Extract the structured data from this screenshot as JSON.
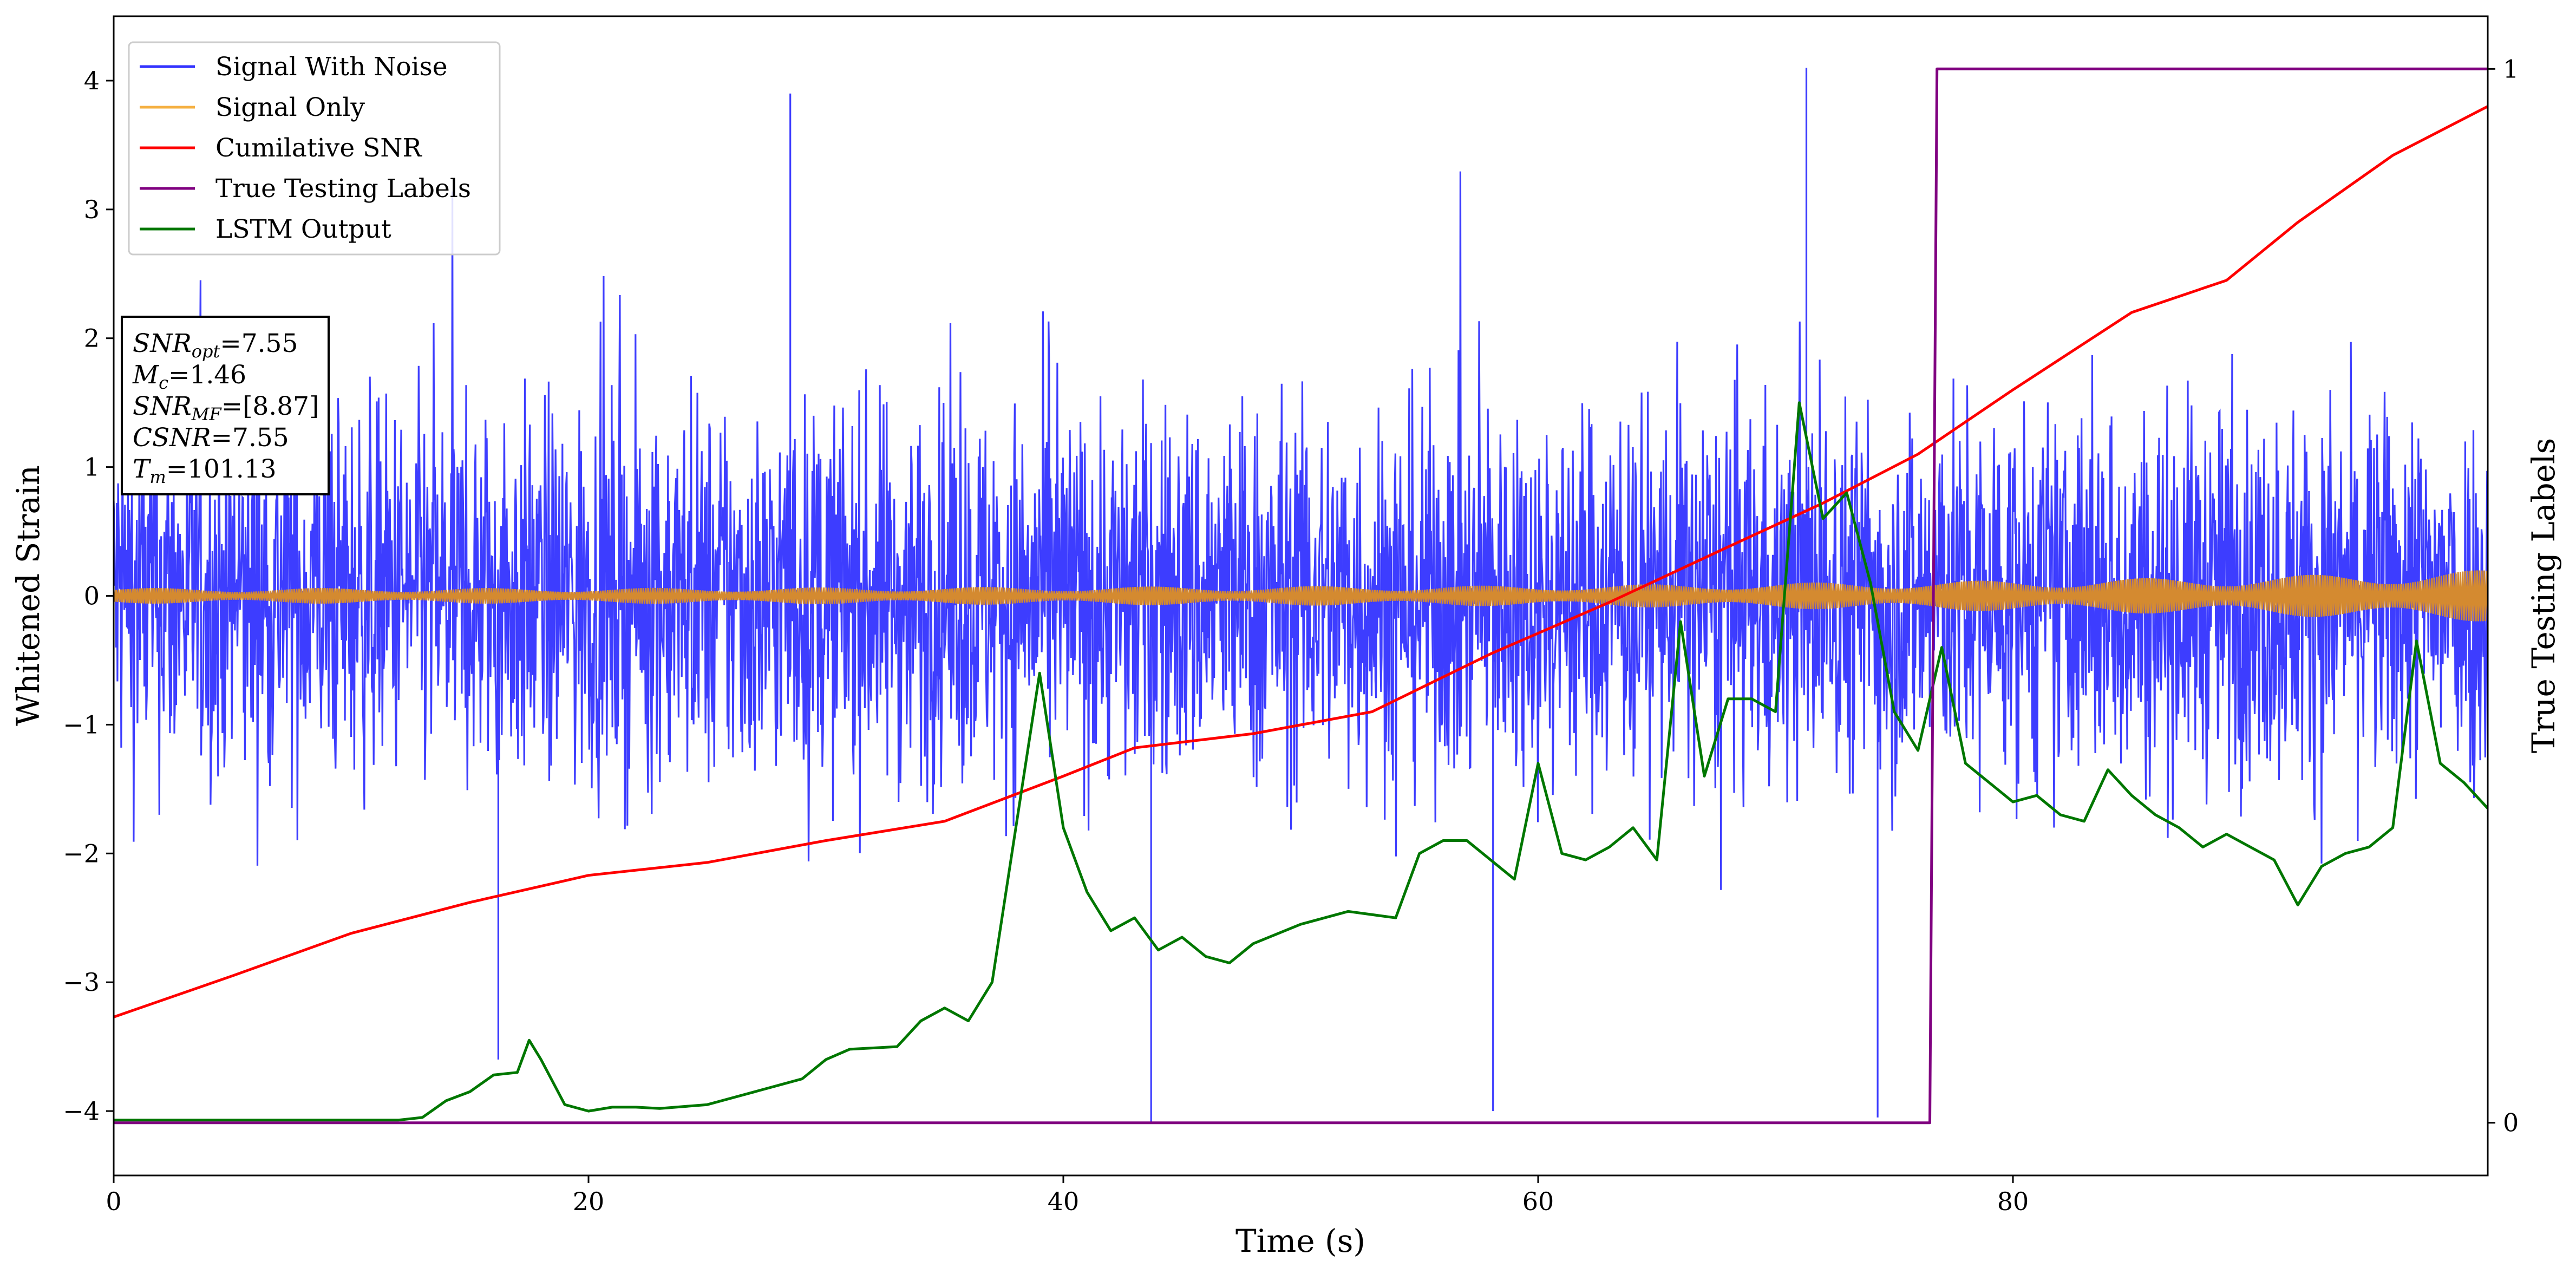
{
  "chart_data": {
    "type": "line",
    "xlabel": "Time (s)",
    "ylabel": "Whitened Strain",
    "y2label": "True Testing Labels",
    "xlim": [
      0,
      100
    ],
    "ylim": [
      -4.5,
      4.5
    ],
    "y2lim": [
      -0.05,
      1.05
    ],
    "xticks": [
      "0",
      "20",
      "40",
      "60",
      "80"
    ],
    "xtick_values": [
      0,
      20,
      40,
      60,
      80
    ],
    "yticks": [
      "−4",
      "−3",
      "−2",
      "−1",
      "0",
      "1",
      "2",
      "3",
      "4"
    ],
    "ytick_values": [
      -4,
      -3,
      -2,
      -1,
      0,
      1,
      2,
      3,
      4
    ],
    "y2ticks": [
      "0",
      "1"
    ],
    "y2tick_values": [
      0,
      1
    ],
    "legend_position": "upper-left",
    "series": [
      {
        "name": "Signal With Noise",
        "color": "#3333ff",
        "description_values": {
          "typical_range": [
            -2.5,
            2.5
          ],
          "spikes": [
            [
              28.5,
              3.9
            ],
            [
              71.3,
              4.1
            ],
            [
              43.7,
              -4.1
            ],
            [
              74.3,
              -4.05
            ],
            [
              58.1,
              -4.0
            ],
            [
              16.2,
              -3.6
            ]
          ]
        }
      },
      {
        "name": "Signal Only",
        "color": "#f5a623",
        "envelope": {
          "x": [
            0,
            20,
            40,
            60,
            70,
            80,
            90,
            100
          ],
          "half_width": [
            0.06,
            0.06,
            0.07,
            0.08,
            0.1,
            0.12,
            0.15,
            0.2
          ]
        }
      },
      {
        "name": "Cumilative SNR",
        "color": "#ff0000",
        "axis": "left",
        "x": [
          0,
          5,
          10,
          15,
          20,
          25,
          30,
          35,
          40,
          43,
          48,
          53,
          58,
          63,
          68,
          72,
          76,
          80,
          85,
          89,
          92,
          96,
          100
        ],
        "y": [
          -3.27,
          -2.95,
          -2.62,
          -2.38,
          -2.17,
          -2.07,
          -1.9,
          -1.75,
          -1.4,
          -1.18,
          -1.07,
          -0.9,
          -0.45,
          -0.05,
          0.38,
          0.72,
          1.1,
          1.6,
          2.2,
          2.45,
          2.9,
          3.42,
          3.8
        ]
      },
      {
        "name": "True Testing Labels",
        "color": "#800080",
        "axis": "right",
        "x": [
          0,
          76.5,
          76.8,
          100
        ],
        "y": [
          0,
          0,
          1,
          1
        ]
      },
      {
        "name": "LSTM Output",
        "color": "#007700",
        "axis": "left",
        "x": [
          0,
          12,
          13,
          14,
          15,
          16,
          17,
          17.5,
          18,
          19,
          20,
          21,
          22,
          23,
          25,
          27,
          29,
          30,
          31,
          33,
          34,
          35,
          36,
          37,
          38,
          39,
          40,
          41,
          42,
          43,
          44,
          45,
          46,
          47,
          48,
          50,
          52,
          54,
          55,
          56,
          57,
          58,
          59,
          60,
          61,
          62,
          63,
          64,
          65,
          66,
          67,
          68,
          69,
          70,
          71,
          72,
          73,
          74,
          75,
          76,
          77,
          78,
          79,
          80,
          81,
          82,
          83,
          84,
          85,
          86,
          87,
          88,
          89,
          90,
          91,
          92,
          93,
          94,
          95,
          96,
          97,
          98,
          99,
          100
        ],
        "y": [
          -4.07,
          -4.07,
          -4.05,
          -3.92,
          -3.85,
          -3.72,
          -3.7,
          -3.45,
          -3.6,
          -3.95,
          -4.0,
          -3.97,
          -3.97,
          -3.98,
          -3.95,
          -3.85,
          -3.75,
          -3.6,
          -3.52,
          -3.5,
          -3.3,
          -3.2,
          -3.3,
          -3.0,
          -1.8,
          -0.6,
          -1.8,
          -2.3,
          -2.6,
          -2.5,
          -2.75,
          -2.65,
          -2.8,
          -2.85,
          -2.7,
          -2.55,
          -2.45,
          -2.5,
          -2.0,
          -1.9,
          -1.9,
          -2.05,
          -2.2,
          -1.3,
          -2.0,
          -2.05,
          -1.95,
          -1.8,
          -2.05,
          -0.2,
          -1.4,
          -0.8,
          -0.8,
          -0.9,
          1.5,
          0.6,
          0.8,
          0.1,
          -0.9,
          -1.2,
          -0.4,
          -1.3,
          -1.45,
          -1.6,
          -1.55,
          -1.7,
          -1.75,
          -1.35,
          -1.55,
          -1.7,
          -1.8,
          -1.95,
          -1.85,
          -1.95,
          -2.05,
          -2.4,
          -2.1,
          -2.0,
          -1.95,
          -1.8,
          -0.35,
          -1.3,
          -1.45,
          -1.65
        ]
      }
    ],
    "annotation_lines": [
      {
        "base": "SNR",
        "sub": "opt",
        "value": "=7.55"
      },
      {
        "base": "M",
        "sub": "c",
        "value": "=1.46"
      },
      {
        "base": "SNR",
        "sub": "MF",
        "value": "=[8.87]"
      },
      {
        "base": "CSNR",
        "sub": "",
        "value": "=7.55"
      },
      {
        "base": "T",
        "sub": "m",
        "value": "=101.13"
      }
    ]
  }
}
